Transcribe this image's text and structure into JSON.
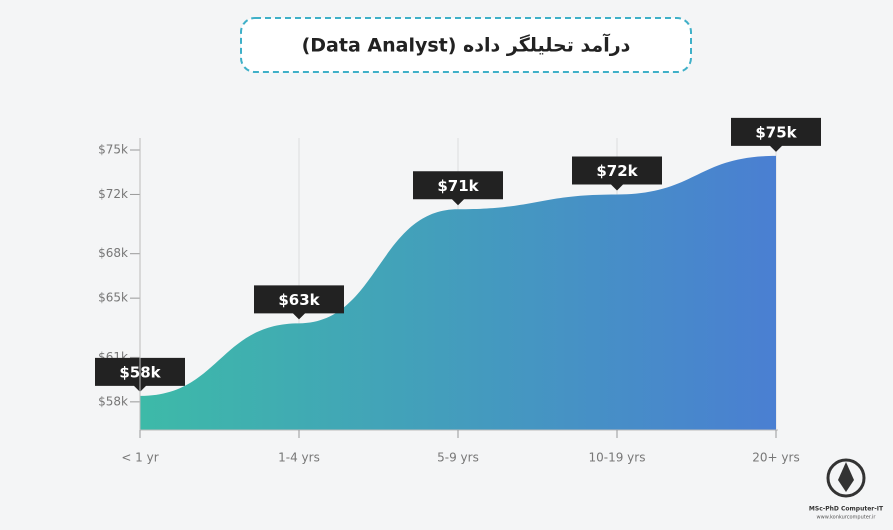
{
  "chart_data": {
    "type": "area",
    "title": "درآمد تحلیلگر داده (Data Analyst)",
    "categories": [
      "< 1 yr",
      "1-4 yrs",
      "5-9 yrs",
      "10-19 yrs",
      "20+ yrs"
    ],
    "values": [
      58.4,
      63.3,
      71,
      72,
      74.6
    ],
    "value_labels": [
      "$58k",
      "$63k",
      "$71k",
      "$72k",
      "$75k"
    ],
    "color": [
      "#3dbaa8",
      "#4a7fd2"
    ],
    "ylim": [
      56.1,
      75
    ],
    "yticks": [
      {
        "value": 58,
        "label": "$58k"
      },
      {
        "value": 61,
        "label": "$61k"
      },
      {
        "value": 65,
        "label": "$65k"
      },
      {
        "value": 68,
        "label": "$68k"
      },
      {
        "value": 72,
        "label": "$72k"
      },
      {
        "value": 75,
        "label": "$75k"
      }
    ],
    "grid": true
  },
  "logo": {
    "line1": "MSc-PhD Computer-IT",
    "line2": "www.konkurcomputer.ir"
  }
}
